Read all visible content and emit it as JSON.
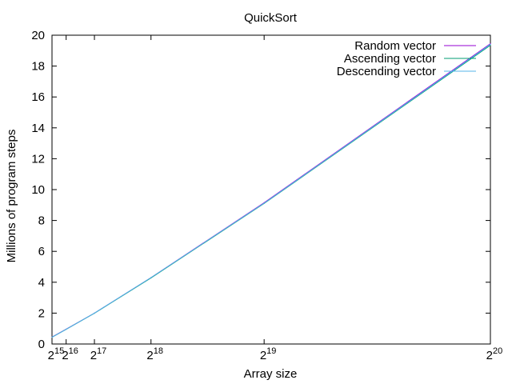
{
  "chart_data": {
    "type": "line",
    "title": "QuickSort",
    "xlabel": "Array size",
    "ylabel": "Millions of program steps",
    "x_scale": "linear",
    "xlim": [
      32768,
      1048576
    ],
    "ylim": [
      0,
      20
    ],
    "x_ticks": [
      {
        "value": 32768,
        "base": "2",
        "exp": "15"
      },
      {
        "value": 65536,
        "base": "2",
        "exp": "16"
      },
      {
        "value": 131072,
        "base": "2",
        "exp": "17"
      },
      {
        "value": 262144,
        "base": "2",
        "exp": "18"
      },
      {
        "value": 524288,
        "base": "2",
        "exp": "19"
      },
      {
        "value": 1048576,
        "base": "2",
        "exp": "20"
      }
    ],
    "y_ticks": [
      "0",
      "2",
      "4",
      "6",
      "8",
      "10",
      "12",
      "14",
      "16",
      "18",
      "20"
    ],
    "grid": false,
    "legend_position": "top-right",
    "series": [
      {
        "name": "Random vector",
        "color": "#9400d3",
        "x": [
          32768,
          65536,
          131072,
          262144,
          524288,
          1048576
        ],
        "y": [
          0.45,
          0.96,
          2.0,
          4.3,
          9.15,
          19.45
        ]
      },
      {
        "name": "Ascending vector",
        "color": "#009e73",
        "x": [
          32768,
          65536,
          131072,
          262144,
          524288,
          1048576
        ],
        "y": [
          0.44,
          0.95,
          1.99,
          4.28,
          9.1,
          19.35
        ]
      },
      {
        "name": "Descending vector",
        "color": "#56b4e9",
        "x": [
          32768,
          65536,
          131072,
          262144,
          524288,
          1048576
        ],
        "y": [
          0.44,
          0.95,
          2.0,
          4.3,
          9.12,
          19.4
        ]
      }
    ]
  }
}
